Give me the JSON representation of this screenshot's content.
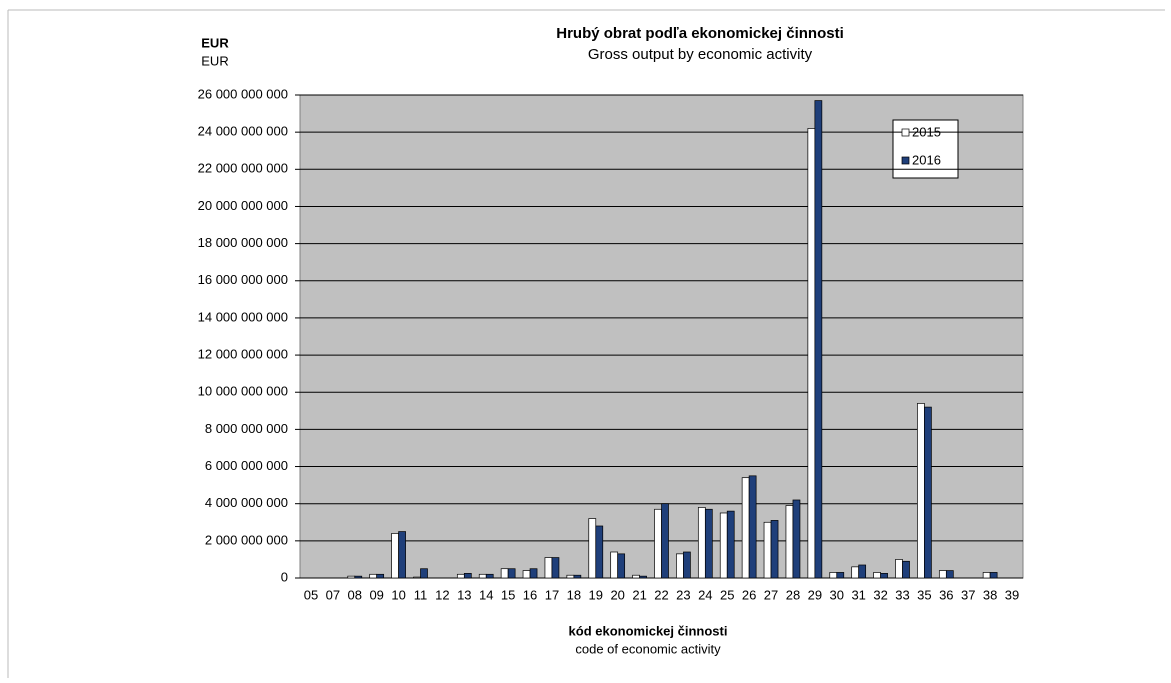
{
  "chart_data": {
    "type": "bar",
    "title": "Hrubý obrat podľa ekonomickej činnosti",
    "subtitle": "Gross output by economic activity",
    "y_label": "EUR",
    "y_label_en": "EUR",
    "x_label": "kód ekonomickej činnosti",
    "x_label_en": "code of economic activity",
    "categories": [
      "05",
      "07",
      "08",
      "09",
      "10",
      "11",
      "12",
      "13",
      "14",
      "15",
      "16",
      "17",
      "18",
      "19",
      "20",
      "21",
      "22",
      "23",
      "24",
      "25",
      "26",
      "27",
      "28",
      "29",
      "30",
      "31",
      "32",
      "33",
      "35",
      "36",
      "37",
      "38",
      "39"
    ],
    "series": [
      {
        "name": "2015",
        "color": "#ffffff",
        "values": [
          0,
          0,
          100000000,
          200000000,
          2400000000,
          50000000,
          0,
          200000000,
          200000000,
          500000000,
          400000000,
          1100000000,
          150000000,
          3200000000,
          1400000000,
          150000000,
          3700000000,
          1300000000,
          3800000000,
          3500000000,
          5400000000,
          3000000000,
          3900000000,
          24200000000,
          300000000,
          600000000,
          300000000,
          1000000000,
          9400000000,
          400000000,
          0,
          300000000,
          0
        ]
      },
      {
        "name": "2016",
        "color": "#1f3f7a",
        "values": [
          0,
          0,
          100000000,
          200000000,
          2500000000,
          500000000,
          0,
          250000000,
          200000000,
          500000000,
          500000000,
          1100000000,
          150000000,
          2800000000,
          1300000000,
          100000000,
          4000000000,
          1400000000,
          3700000000,
          3600000000,
          5500000000,
          3100000000,
          4200000000,
          25700000000,
          300000000,
          700000000,
          250000000,
          900000000,
          9200000000,
          400000000,
          0,
          300000000,
          0
        ]
      }
    ],
    "ylim": [
      0,
      26000000000
    ],
    "yticks": [
      0,
      {
        "value": 2000000000,
        "label": "2 000 000 000"
      },
      {
        "value": 4000000000,
        "label": "4 000 000 000"
      },
      {
        "value": 6000000000,
        "label": "6 000 000 000"
      },
      {
        "value": 8000000000,
        "label": "8 000 000 000"
      },
      {
        "value": 10000000000,
        "label": "10 000 000 000"
      },
      {
        "value": 12000000000,
        "label": "12 000 000 000"
      },
      {
        "value": 14000000000,
        "label": "14 000 000 000"
      },
      {
        "value": 16000000000,
        "label": "16 000 000 000"
      },
      {
        "value": 18000000000,
        "label": "18 000 000 000"
      },
      {
        "value": 20000000000,
        "label": "20 000 000 000"
      },
      {
        "value": 22000000000,
        "label": "22 000 000 000"
      },
      {
        "value": 24000000000,
        "label": "24 000 000 000"
      },
      {
        "value": 26000000000,
        "label": "26 000 000 000"
      }
    ],
    "grid": true
  }
}
